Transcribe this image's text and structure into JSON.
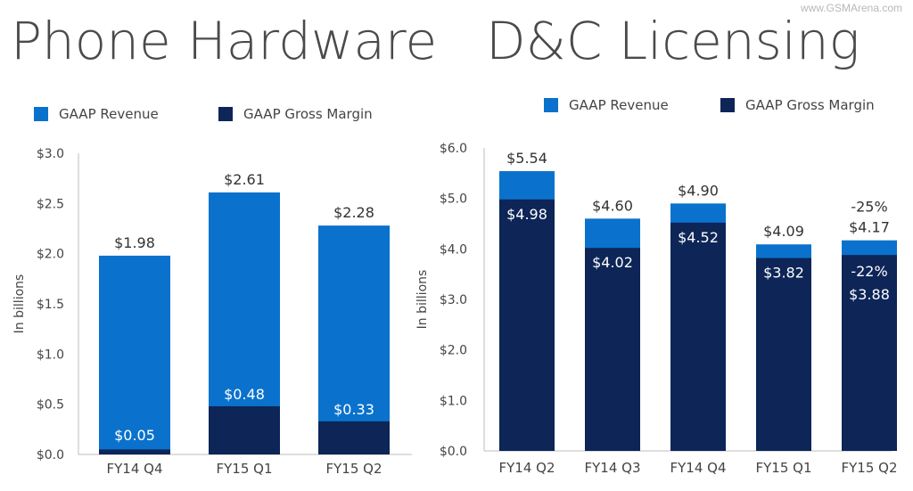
{
  "watermark": "www.GSMArena.com",
  "colors": {
    "revenue": "#0a72cc",
    "margin": "#0d2557",
    "axis": "#bdbdbd"
  },
  "charts": [
    {
      "title": "Phone Hardware",
      "legend": [
        "GAAP Revenue",
        "GAAP Gross Margin"
      ],
      "ylabel": "In billions",
      "ylim": [
        0,
        3.0
      ],
      "yticks": [
        "$0.0",
        "$0.5",
        "$1.0",
        "$1.5",
        "$2.0",
        "$2.5",
        "$3.0"
      ],
      "categories": [
        "FY14 Q4",
        "FY15 Q1",
        "FY15 Q2"
      ],
      "revenue": [
        1.98,
        2.61,
        2.28
      ],
      "margin": [
        0.05,
        0.48,
        0.33
      ],
      "revenue_labels": [
        "$1.98",
        "$2.61",
        "$2.28"
      ],
      "margin_labels": [
        "$0.05",
        "$0.48",
        "$0.33"
      ]
    },
    {
      "title": "D&C Licensing",
      "legend": [
        "GAAP Revenue",
        "GAAP Gross Margin"
      ],
      "ylabel": "In billions",
      "ylim": [
        0,
        6.0
      ],
      "yticks": [
        "$0.0",
        "$1.0",
        "$2.0",
        "$3.0",
        "$4.0",
        "$5.0",
        "$6.0"
      ],
      "categories": [
        "FY14 Q2",
        "FY14 Q3",
        "FY14 Q4",
        "FY15 Q1",
        "FY15 Q2"
      ],
      "revenue": [
        5.54,
        4.6,
        4.9,
        4.09,
        4.17
      ],
      "margin": [
        4.98,
        4.02,
        4.52,
        3.82,
        3.88
      ],
      "revenue_labels": [
        "$5.54",
        "$4.60",
        "$4.90",
        "$4.09",
        "$4.17"
      ],
      "margin_labels": [
        "$4.98",
        "$4.02",
        "$4.52",
        "$3.82",
        "$3.88"
      ],
      "annotations": [
        {
          "category": "FY15 Q2",
          "text": "-25%",
          "series": "revenue"
        },
        {
          "category": "FY15 Q2",
          "text": "-22%",
          "series": "margin"
        }
      ]
    }
  ],
  "chart_data": [
    {
      "type": "bar",
      "title": "Phone Hardware",
      "categories": [
        "FY14 Q4",
        "FY15 Q1",
        "FY15 Q2"
      ],
      "series": [
        {
          "name": "GAAP Revenue",
          "values": [
            1.98,
            2.61,
            2.28
          ]
        },
        {
          "name": "GAAP Gross Margin",
          "values": [
            0.05,
            0.48,
            0.33
          ]
        }
      ],
      "ylabel": "In billions",
      "ylim": [
        0,
        3.0
      ],
      "legend": "top"
    },
    {
      "type": "bar",
      "title": "D&C Licensing",
      "categories": [
        "FY14 Q2",
        "FY14 Q3",
        "FY14 Q4",
        "FY15 Q1",
        "FY15 Q2"
      ],
      "series": [
        {
          "name": "GAAP Revenue",
          "values": [
            5.54,
            4.6,
            4.9,
            4.09,
            4.17
          ]
        },
        {
          "name": "GAAP Gross Margin",
          "values": [
            4.98,
            4.02,
            4.52,
            3.82,
            3.88
          ]
        }
      ],
      "ylabel": "In billions",
      "ylim": [
        0,
        6.0
      ],
      "legend": "top"
    }
  ]
}
